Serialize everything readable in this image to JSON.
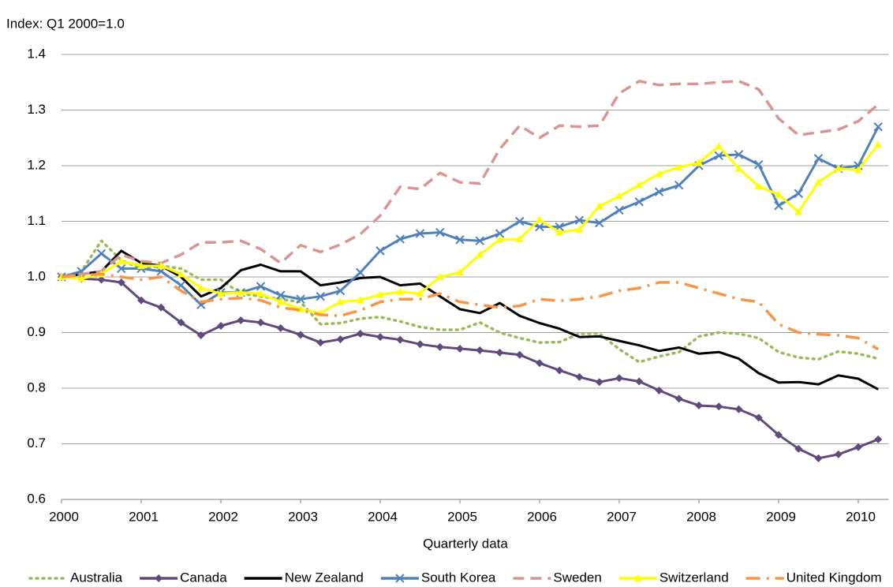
{
  "chart_data": {
    "type": "line",
    "y_axis_label": "Index: Q1 2000=1.0",
    "x_axis_label": "Quarterly data",
    "x": [
      2000,
      2000.25,
      2000.5,
      2000.75,
      2001,
      2001.25,
      2001.5,
      2001.75,
      2002,
      2002.25,
      2002.5,
      2002.75,
      2003,
      2003.25,
      2003.5,
      2003.75,
      2004,
      2004.25,
      2004.5,
      2004.75,
      2005,
      2005.25,
      2005.5,
      2005.75,
      2006,
      2006.25,
      2006.5,
      2006.75,
      2007,
      2007.25,
      2007.5,
      2007.75,
      2008,
      2008.25,
      2008.5,
      2008.75,
      2009,
      2009.25,
      2009.5,
      2009.75,
      2010,
      2010.25
    ],
    "xlim": [
      2000,
      2010.5
    ],
    "xticks": [
      2000,
      2001,
      2002,
      2003,
      2004,
      2005,
      2006,
      2007,
      2008,
      2009,
      2010
    ],
    "ylim": [
      0.6,
      1.4
    ],
    "yticks": [
      {
        "value": 0.6,
        "label": "0.6"
      },
      {
        "value": 0.7,
        "label": "0.7"
      },
      {
        "value": 0.8,
        "label": "0.8"
      },
      {
        "value": 0.9,
        "label": "0.9"
      },
      {
        "value": 1.0,
        "label": "1.0"
      },
      {
        "value": 1.1,
        "label": "1.1"
      },
      {
        "value": 1.2,
        "label": "1.2"
      },
      {
        "value": 1.3,
        "label": "1.3"
      },
      {
        "value": 1.4,
        "label": "1.4"
      }
    ],
    "grid": true,
    "legend": "bottom",
    "series": [
      {
        "name": "Australia",
        "color": "#9bbb59",
        "dash": "dotted",
        "marker": "none",
        "values": [
          1.0,
          1.01,
          1.065,
          1.03,
          1.015,
          1.02,
          1.015,
          0.995,
          0.995,
          0.97,
          0.965,
          0.96,
          0.955,
          0.915,
          0.917,
          0.925,
          0.928,
          0.92,
          0.91,
          0.905,
          0.905,
          0.918,
          0.9,
          0.89,
          0.882,
          0.883,
          0.898,
          0.898,
          0.87,
          0.847,
          0.857,
          0.865,
          0.893,
          0.9,
          0.898,
          0.89,
          0.865,
          0.855,
          0.852,
          0.866,
          0.862,
          0.853
        ]
      },
      {
        "name": "Canada",
        "color": "#604a7b",
        "dash": "solid",
        "marker": "diamond",
        "values": [
          1.0,
          0.997,
          0.995,
          0.99,
          0.958,
          0.945,
          0.918,
          0.895,
          0.912,
          0.922,
          0.918,
          0.908,
          0.896,
          0.882,
          0.888,
          0.898,
          0.892,
          0.887,
          0.879,
          0.874,
          0.871,
          0.868,
          0.864,
          0.86,
          0.845,
          0.832,
          0.82,
          0.811,
          0.818,
          0.812,
          0.796,
          0.781,
          0.769,
          0.767,
          0.762,
          0.747,
          0.716,
          0.691,
          0.674,
          0.681,
          0.694,
          0.708
        ]
      },
      {
        "name": "New Zealand",
        "color": "#000000",
        "dash": "solid",
        "marker": "none",
        "values": [
          1.0,
          1.005,
          1.01,
          1.047,
          1.025,
          1.02,
          1.0,
          0.965,
          0.98,
          1.012,
          1.022,
          1.01,
          1.01,
          0.985,
          0.99,
          0.998,
          1.0,
          0.985,
          0.988,
          0.965,
          0.942,
          0.935,
          0.953,
          0.93,
          0.917,
          0.907,
          0.892,
          0.893,
          0.885,
          0.877,
          0.867,
          0.873,
          0.862,
          0.865,
          0.853,
          0.827,
          0.81,
          0.811,
          0.807,
          0.823,
          0.817,
          0.798
        ]
      },
      {
        "name": "South Korea",
        "color": "#4f81bd",
        "dash": "solid",
        "marker": "x",
        "values": [
          1.0,
          1.01,
          1.042,
          1.015,
          1.015,
          1.01,
          0.985,
          0.95,
          0.972,
          0.972,
          0.983,
          0.967,
          0.96,
          0.965,
          0.975,
          1.008,
          1.047,
          1.068,
          1.078,
          1.08,
          1.067,
          1.065,
          1.078,
          1.1,
          1.09,
          1.09,
          1.102,
          1.097,
          1.12,
          1.135,
          1.153,
          1.165,
          1.2,
          1.218,
          1.22,
          1.202,
          1.128,
          1.15,
          1.213,
          1.195,
          1.2,
          1.27
        ]
      },
      {
        "name": "Sweden",
        "color": "#d99594",
        "dash": "dashed",
        "marker": "none",
        "values": [
          1.0,
          1.005,
          1.01,
          1.04,
          1.028,
          1.025,
          1.04,
          1.062,
          1.062,
          1.065,
          1.05,
          1.025,
          1.057,
          1.045,
          1.058,
          1.077,
          1.11,
          1.162,
          1.158,
          1.187,
          1.17,
          1.168,
          1.23,
          1.272,
          1.25,
          1.272,
          1.27,
          1.272,
          1.33,
          1.352,
          1.345,
          1.347,
          1.347,
          1.35,
          1.352,
          1.337,
          1.285,
          1.255,
          1.26,
          1.265,
          1.28,
          1.31
        ]
      },
      {
        "name": "Switzerland",
        "color": "#ffff00",
        "dash": "solid",
        "marker": "triangle",
        "values": [
          1.0,
          0.997,
          1.005,
          1.028,
          1.02,
          1.02,
          1.005,
          0.98,
          0.97,
          0.972,
          0.97,
          0.955,
          0.942,
          0.935,
          0.955,
          0.958,
          0.968,
          0.973,
          0.97,
          1.0,
          1.008,
          1.04,
          1.067,
          1.068,
          1.103,
          1.08,
          1.085,
          1.127,
          1.145,
          1.165,
          1.185,
          1.197,
          1.205,
          1.235,
          1.195,
          1.163,
          1.148,
          1.117,
          1.17,
          1.195,
          1.192,
          1.238
        ]
      },
      {
        "name": "United Kingdom",
        "color": "#f79646",
        "dash": "dashdot",
        "marker": "none",
        "values": [
          1.0,
          1.003,
          1.005,
          1.0,
          0.995,
          1.0,
          0.975,
          0.955,
          0.96,
          0.962,
          0.958,
          0.945,
          0.94,
          0.932,
          0.93,
          0.94,
          0.955,
          0.96,
          0.96,
          0.97,
          0.955,
          0.95,
          0.945,
          0.948,
          0.96,
          0.957,
          0.96,
          0.965,
          0.975,
          0.98,
          0.99,
          0.99,
          0.98,
          0.97,
          0.96,
          0.955,
          0.915,
          0.9,
          0.897,
          0.895,
          0.89,
          0.87
        ]
      }
    ]
  }
}
